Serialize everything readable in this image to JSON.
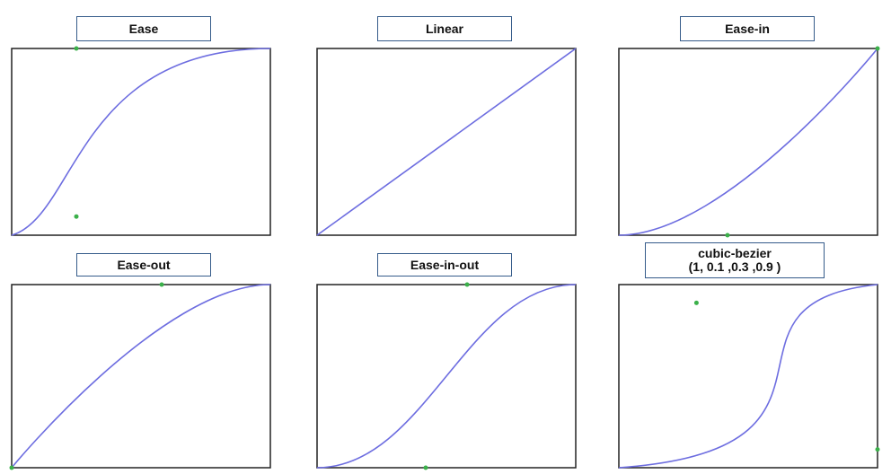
{
  "panels": [
    {
      "label": "Ease",
      "curve": [
        0.25,
        0.1,
        0.25,
        1.0
      ]
    },
    {
      "label": "Linear",
      "curve": [
        0.0,
        0.0,
        1.0,
        1.0
      ]
    },
    {
      "label": "Ease-in",
      "curve": [
        0.42,
        0.0,
        1.0,
        1.0
      ]
    },
    {
      "label": "Ease-out",
      "curve": [
        0.0,
        0.0,
        0.58,
        1.0
      ]
    },
    {
      "label": "Ease-in-out",
      "curve": [
        0.42,
        0.0,
        0.58,
        1.0
      ]
    },
    {
      "label": "cubic-bezier",
      "label_line2": "(1, 0.1 ,0.3 ,0.9 )",
      "curve": [
        1.0,
        0.1,
        0.3,
        0.9
      ]
    }
  ],
  "colors": {
    "curve": "#6d6de0",
    "control_point": "#3bb04a",
    "label_border": "#355b8a",
    "frame": "#222222"
  }
}
